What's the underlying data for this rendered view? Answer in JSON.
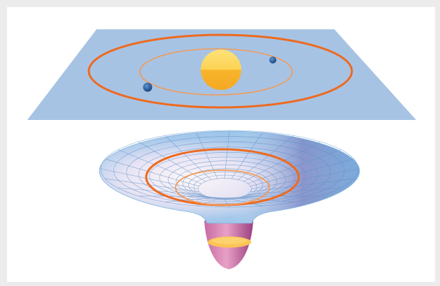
{
  "figure": {
    "top_panel": "flat-space-orbits",
    "bottom_panel": "curved-spacetime-well"
  },
  "colors": {
    "frame": "#ececec",
    "plane": "#a7c3e4",
    "sun_light": "#fdd65a",
    "sun_dark": "#f8b52b",
    "orbit_outer": "#ee6a1f",
    "orbit_inner": "#f39a55",
    "planet": "#1f5fa9",
    "grid_line": "#5f8fc6",
    "well_rim": "#8ec6ec",
    "well_center": "#fbf6f8",
    "well_shadow": "#6e5aa8",
    "throat": "#b85595",
    "disc": "#fbc454"
  }
}
